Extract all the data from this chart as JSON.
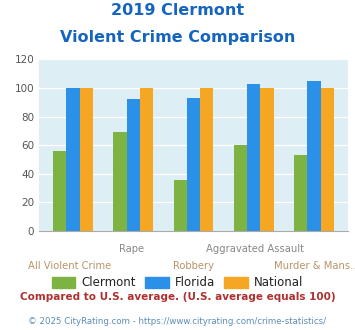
{
  "title_line1": "2019 Clermont",
  "title_line2": "Violent Crime Comparison",
  "categories": [
    "All Violent Crime",
    "Rape",
    "Robbery",
    "Aggravated Assault",
    "Murder & Mans..."
  ],
  "clermont": [
    56,
    69,
    36,
    60,
    53
  ],
  "florida": [
    100,
    92,
    93,
    103,
    105
  ],
  "national": [
    100,
    100,
    100,
    100,
    100
  ],
  "color_clermont": "#7cb342",
  "color_florida": "#2b90e8",
  "color_national": "#f5a623",
  "ylim": [
    0,
    120
  ],
  "yticks": [
    0,
    20,
    40,
    60,
    80,
    100,
    120
  ],
  "top_labels": [
    "",
    "Rape",
    "",
    "Aggravated Assault",
    ""
  ],
  "bottom_labels": [
    "All Violent Crime",
    "",
    "Robbery",
    "",
    "Murder & Mans..."
  ],
  "footnote1": "Compared to U.S. average. (U.S. average equals 100)",
  "footnote2": "© 2025 CityRating.com - https://www.cityrating.com/crime-statistics/",
  "bg_color": "#deeef5",
  "title_color": "#1565c0",
  "footnote1_color": "#b03030",
  "footnote2_color": "#5b8db8",
  "top_label_color": "#888888",
  "bottom_label_color": "#b8956a"
}
